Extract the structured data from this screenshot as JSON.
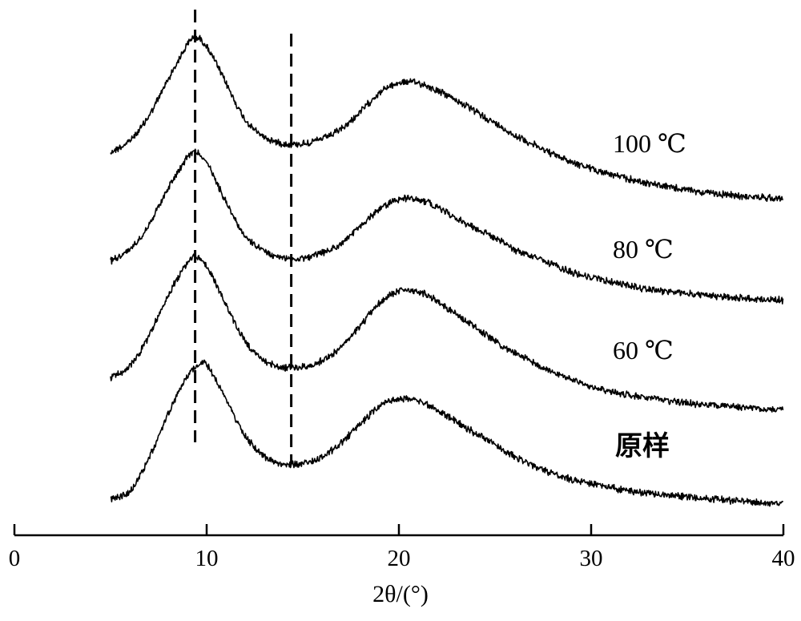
{
  "chart_data": {
    "type": "line",
    "xlabel": "2θ/(°)",
    "ylabel": "",
    "xlim": [
      0,
      40
    ],
    "xticks": [
      0,
      10,
      20,
      30,
      40
    ],
    "y_axis_shown": false,
    "grid": false,
    "reference_lines_x": [
      9.4,
      14.4
    ],
    "series": [
      {
        "name": "100 ℃",
        "x": [
          5,
          6,
          7,
          8,
          9,
          9.4,
          10,
          11,
          12,
          13,
          14,
          15,
          16,
          17,
          18,
          19,
          20,
          21,
          22,
          23,
          24,
          25,
          26,
          27,
          28,
          29,
          30,
          32,
          34,
          36,
          38,
          40
        ],
        "y": [
          0.3,
          0.36,
          0.49,
          0.68,
          0.86,
          0.9,
          0.85,
          0.66,
          0.47,
          0.38,
          0.345,
          0.345,
          0.37,
          0.42,
          0.51,
          0.61,
          0.66,
          0.66,
          0.62,
          0.57,
          0.51,
          0.45,
          0.39,
          0.34,
          0.29,
          0.25,
          0.215,
          0.16,
          0.12,
          0.09,
          0.07,
          0.06
        ]
      },
      {
        "name": "80 ℃",
        "x": [
          5,
          6,
          7,
          8,
          9,
          9.4,
          10,
          11,
          12,
          13,
          14,
          15,
          16,
          17,
          18,
          19,
          20,
          21,
          22,
          23,
          24,
          25,
          26,
          27,
          28,
          29,
          30,
          32,
          34,
          36,
          38,
          40
        ],
        "y": [
          0.26,
          0.32,
          0.45,
          0.64,
          0.8,
          0.83,
          0.77,
          0.57,
          0.39,
          0.31,
          0.275,
          0.275,
          0.3,
          0.35,
          0.44,
          0.53,
          0.58,
          0.58,
          0.54,
          0.48,
          0.43,
          0.38,
          0.32,
          0.28,
          0.24,
          0.2,
          0.175,
          0.13,
          0.1,
          0.08,
          0.065,
          0.055
        ]
      },
      {
        "name": "60 ℃",
        "x": [
          5,
          6,
          7,
          8,
          9,
          9.4,
          10,
          11,
          12,
          13,
          14,
          15,
          16,
          17,
          18,
          19,
          20,
          21,
          22,
          23,
          24,
          25,
          26,
          27,
          28,
          29,
          30,
          32,
          34,
          36,
          38,
          40
        ],
        "y": [
          0.21,
          0.27,
          0.43,
          0.64,
          0.81,
          0.84,
          0.79,
          0.59,
          0.4,
          0.3,
          0.265,
          0.265,
          0.3,
          0.37,
          0.48,
          0.6,
          0.66,
          0.66,
          0.61,
          0.54,
          0.47,
          0.4,
          0.34,
          0.29,
          0.24,
          0.2,
          0.165,
          0.12,
          0.09,
          0.07,
          0.055,
          0.045
        ]
      },
      {
        "name": "原样",
        "x": [
          5,
          6,
          7,
          8,
          9,
          9.8,
          10,
          11,
          12,
          13,
          14,
          15,
          16,
          17,
          18,
          19,
          20,
          21,
          22,
          23,
          24,
          25,
          26,
          27,
          28,
          29,
          30,
          32,
          34,
          36,
          38,
          40
        ],
        "y": [
          0.04,
          0.08,
          0.25,
          0.48,
          0.68,
          0.75,
          0.74,
          0.56,
          0.37,
          0.26,
          0.22,
          0.225,
          0.26,
          0.33,
          0.43,
          0.52,
          0.56,
          0.55,
          0.5,
          0.44,
          0.38,
          0.32,
          0.26,
          0.21,
          0.17,
          0.14,
          0.12,
          0.08,
          0.06,
          0.04,
          0.025,
          0.015
        ]
      }
    ]
  }
}
